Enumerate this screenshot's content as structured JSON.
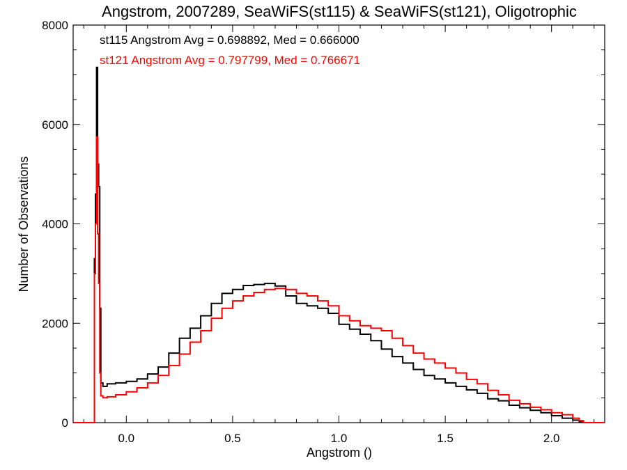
{
  "chart_data": {
    "type": "line",
    "title": "Angstrom, 2007289, SeaWiFS(st115) & SeaWiFS(st121), Oligotrophic",
    "xlabel": "Angstrom ()",
    "ylabel": "Number of Observations",
    "xlim": [
      -0.25,
      2.25
    ],
    "ylim": [
      0,
      8000
    ],
    "x_ticks": [
      0.0,
      0.5,
      1.0,
      1.5,
      2.0
    ],
    "x_tick_labels": [
      "0.0",
      "0.5",
      "1.0",
      "1.5",
      "2.0"
    ],
    "y_ticks": [
      0,
      2000,
      4000,
      6000,
      8000
    ],
    "y_tick_labels": [
      "0",
      "2000",
      "4000",
      "6000",
      "8000"
    ],
    "grid": false,
    "annotations": [
      {
        "text": "st115 Angstrom Avg = 0.698892, Med = 0.666000",
        "color": "#000000"
      },
      {
        "text": "st121 Angstrom Avg = 0.797799, Med = 0.766671",
        "color": "#ff0000"
      }
    ],
    "series": [
      {
        "color": "#000000",
        "style": "step",
        "x": [
          -0.25,
          -0.16,
          -0.15,
          -0.145,
          -0.14,
          -0.135,
          -0.13,
          -0.125,
          -0.12,
          -0.11,
          -0.09,
          -0.05,
          0.0,
          0.05,
          0.1,
          0.15,
          0.2,
          0.25,
          0.3,
          0.35,
          0.4,
          0.45,
          0.5,
          0.55,
          0.6,
          0.65,
          0.7,
          0.75,
          0.8,
          0.85,
          0.9,
          0.95,
          1.0,
          1.05,
          1.1,
          1.15,
          1.2,
          1.25,
          1.3,
          1.35,
          1.4,
          1.45,
          1.5,
          1.55,
          1.6,
          1.65,
          1.7,
          1.75,
          1.8,
          1.85,
          1.9,
          1.95,
          2.0,
          2.05,
          2.1,
          2.13,
          2.15,
          2.25
        ],
        "y": [
          0,
          0,
          3300,
          4600,
          7150,
          5200,
          4750,
          2300,
          800,
          730,
          780,
          800,
          830,
          880,
          980,
          1120,
          1400,
          1700,
          1900,
          2150,
          2400,
          2600,
          2680,
          2760,
          2780,
          2800,
          2750,
          2550,
          2400,
          2350,
          2300,
          2200,
          1980,
          1880,
          1780,
          1650,
          1480,
          1330,
          1200,
          1070,
          950,
          880,
          800,
          730,
          660,
          590,
          480,
          440,
          350,
          300,
          250,
          200,
          140,
          90,
          50,
          20,
          0,
          0
        ]
      },
      {
        "color": "#ff0000",
        "style": "step",
        "x": [
          -0.25,
          -0.16,
          -0.15,
          -0.145,
          -0.14,
          -0.135,
          -0.13,
          -0.125,
          -0.12,
          -0.11,
          -0.09,
          -0.05,
          0.0,
          0.05,
          0.1,
          0.15,
          0.2,
          0.25,
          0.3,
          0.35,
          0.4,
          0.45,
          0.5,
          0.55,
          0.6,
          0.65,
          0.7,
          0.75,
          0.8,
          0.85,
          0.9,
          0.95,
          1.0,
          1.05,
          1.1,
          1.15,
          1.2,
          1.25,
          1.3,
          1.35,
          1.4,
          1.45,
          1.5,
          1.55,
          1.6,
          1.65,
          1.7,
          1.75,
          1.8,
          1.85,
          1.9,
          1.95,
          2.0,
          2.05,
          2.1,
          2.13,
          2.15,
          2.25
        ],
        "y": [
          0,
          0,
          3000,
          4000,
          5750,
          3800,
          2800,
          1000,
          540,
          500,
          520,
          560,
          620,
          700,
          800,
          950,
          1150,
          1380,
          1620,
          1850,
          2100,
          2300,
          2450,
          2550,
          2620,
          2680,
          2700,
          2680,
          2600,
          2550,
          2450,
          2350,
          2150,
          2050,
          1950,
          1900,
          1850,
          1700,
          1550,
          1400,
          1280,
          1200,
          1100,
          1000,
          870,
          780,
          650,
          560,
          450,
          380,
          310,
          260,
          200,
          160,
          90,
          40,
          0,
          0
        ]
      }
    ]
  }
}
